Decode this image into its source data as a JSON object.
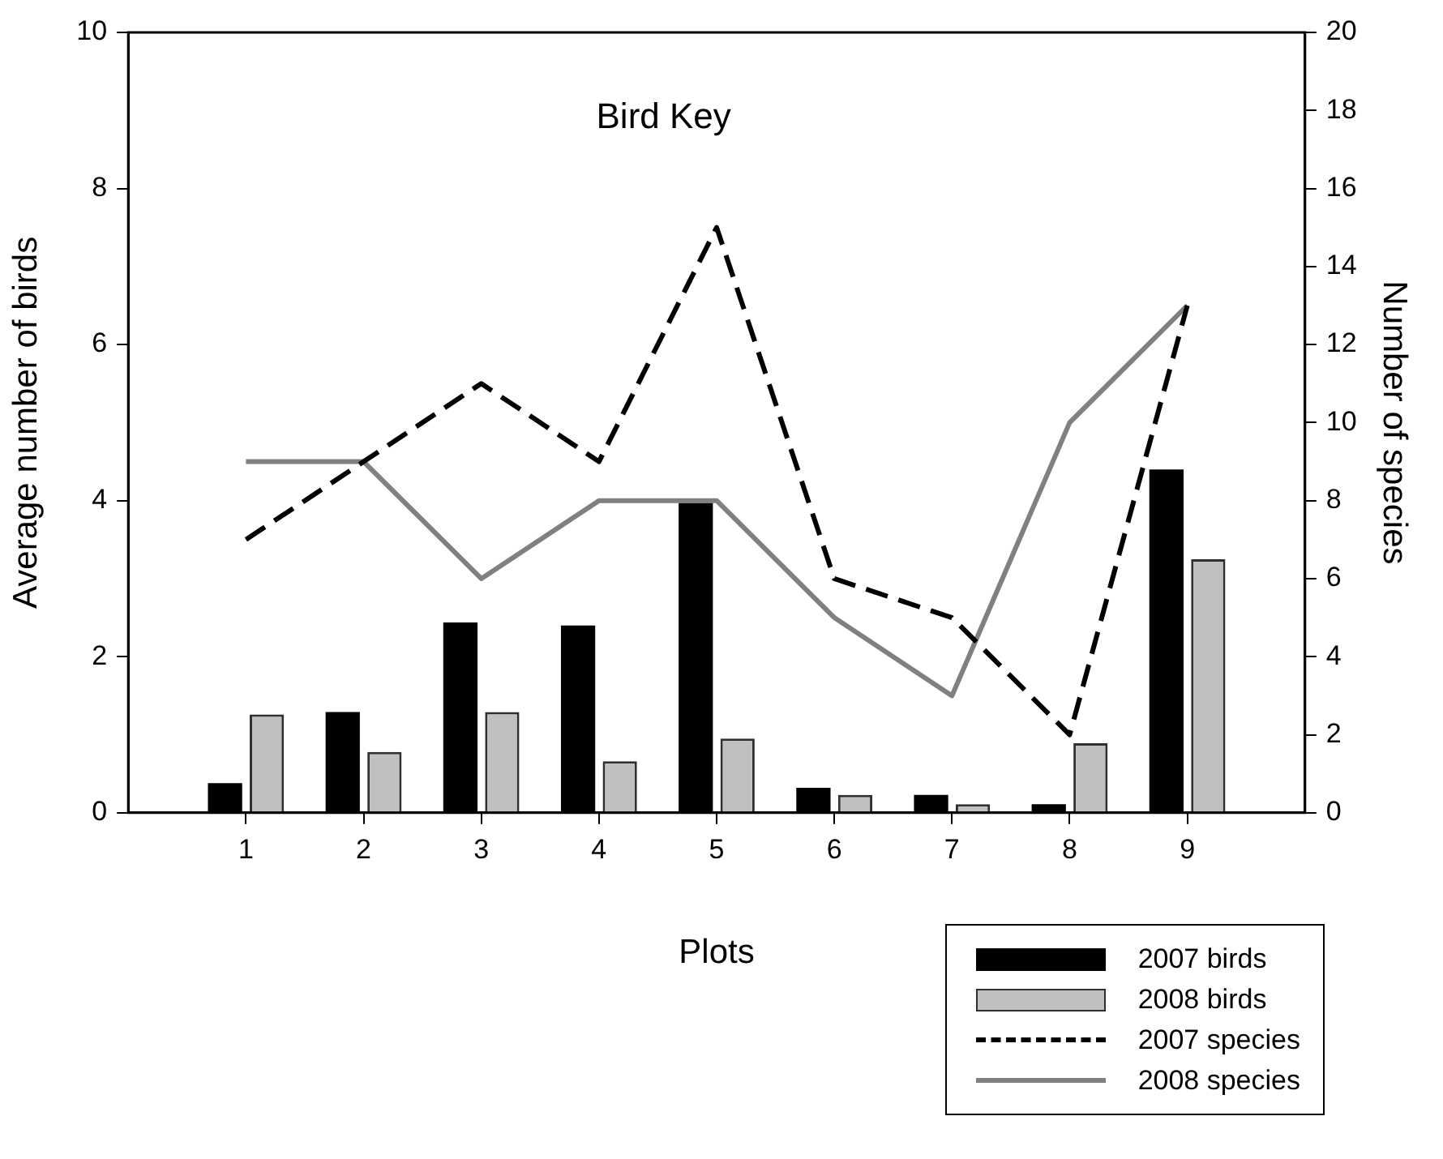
{
  "chart_data": {
    "type": "bar",
    "title": "Bird Key",
    "xlabel": "Plots",
    "ylabel": "Average number of birds",
    "y2label": "Number of species",
    "x": [
      1,
      2,
      3,
      4,
      5,
      6,
      7,
      8,
      9
    ],
    "xlim": [
      0,
      10
    ],
    "xticks": [
      1,
      2,
      3,
      4,
      5,
      6,
      7,
      8,
      9
    ],
    "ylim": [
      0,
      10
    ],
    "yticks": [
      0,
      2,
      4,
      6,
      8,
      10
    ],
    "y2lim": [
      0,
      20
    ],
    "y2ticks": [
      0,
      2,
      4,
      6,
      8,
      10,
      12,
      14,
      16,
      18,
      20
    ],
    "grid": false,
    "legend": "bottom right",
    "series": [
      {
        "name": "2007 birds",
        "color": "#000000",
        "values": [
          0.38,
          1.29,
          2.44,
          2.4,
          3.97,
          0.32,
          0.23,
          0.11,
          4.4
        ]
      },
      {
        "name": "2008 birds",
        "color": "#c0c0c0",
        "values": [
          1.26,
          0.78,
          1.29,
          0.66,
          0.95,
          0.23,
          0.11,
          0.89,
          3.25
        ]
      },
      {
        "name": "2007 species",
        "type": "line",
        "axis": "y2",
        "line_style": "dashed",
        "marker": "none",
        "color": "#000000",
        "values": [
          7,
          9,
          11,
          9,
          15,
          6,
          5,
          2,
          13
        ]
      },
      {
        "name": "2008 species",
        "type": "line",
        "axis": "y2",
        "line_style": "solid",
        "marker": "none",
        "color": "#808080",
        "values": [
          9,
          9,
          6,
          8,
          8,
          5,
          3,
          10,
          13
        ]
      }
    ]
  }
}
